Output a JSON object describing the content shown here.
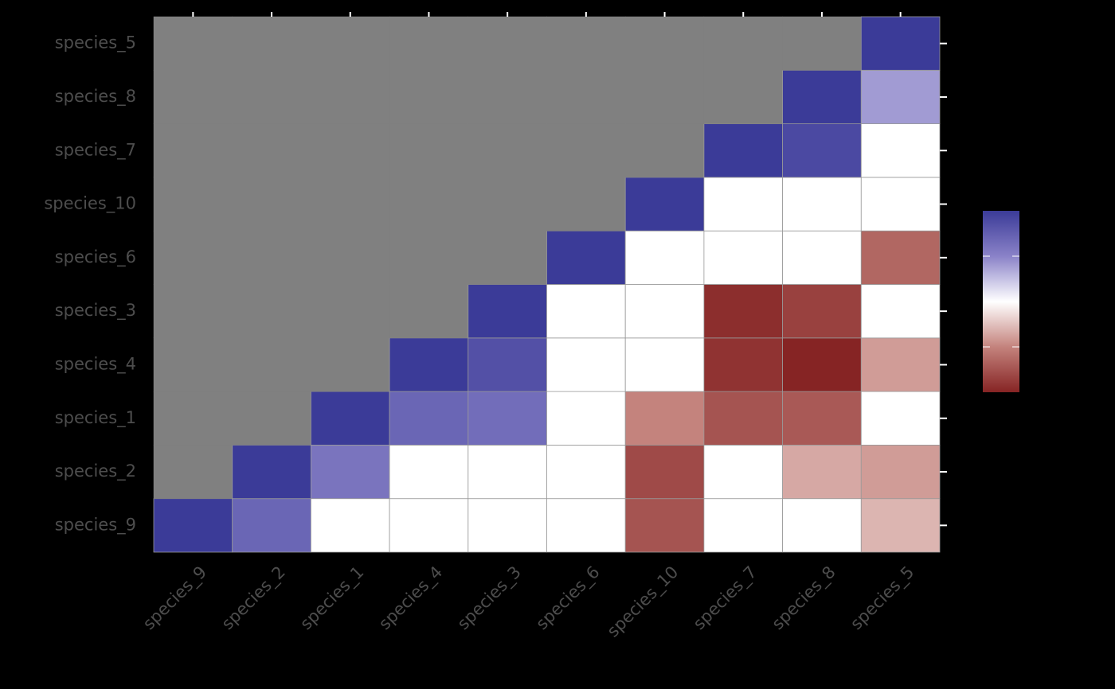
{
  "chart_data": {
    "type": "heatmap",
    "x_categories": [
      "species_9",
      "species_2",
      "species_1",
      "species_4",
      "species_3",
      "species_6",
      "species_10",
      "species_7",
      "species_8",
      "species_5"
    ],
    "y_categories": [
      "species_9",
      "species_2",
      "species_1",
      "species_4",
      "species_3",
      "species_6",
      "species_10",
      "species_7",
      "species_8",
      "species_5"
    ],
    "values": [
      [
        1,
        0.7,
        0,
        0,
        0,
        0,
        -0.75,
        0,
        0,
        -0.3
      ],
      [
        null,
        1,
        0.6,
        0,
        0,
        0,
        -0.8,
        0,
        -0.35,
        -0.4
      ],
      [
        null,
        null,
        1,
        0.7,
        0.65,
        0,
        -0.5,
        -0.75,
        -0.72,
        0
      ],
      [
        null,
        null,
        null,
        1,
        0.85,
        0,
        0,
        -0.92,
        -1,
        -0.4
      ],
      [
        null,
        null,
        null,
        null,
        1,
        0,
        0,
        -0.95,
        -0.85,
        0
      ],
      [
        null,
        null,
        null,
        null,
        null,
        1,
        0,
        0,
        0,
        -0.65
      ],
      [
        null,
        null,
        null,
        null,
        null,
        null,
        1,
        0,
        0,
        0
      ],
      [
        null,
        null,
        null,
        null,
        null,
        null,
        null,
        1,
        0.9,
        0
      ],
      [
        null,
        null,
        null,
        null,
        null,
        null,
        null,
        null,
        1,
        0.4
      ],
      [
        null,
        null,
        null,
        null,
        null,
        null,
        null,
        null,
        null,
        1
      ]
    ],
    "null_color": "#808080",
    "colorscale": {
      "limits": [
        -1,
        1
      ],
      "colors": [
        "#862424",
        "#c4837d",
        "#ffffff",
        "#8a82c8",
        "#3b3b98"
      ],
      "ticks": [
        -0.5,
        0,
        0.5
      ]
    }
  }
}
